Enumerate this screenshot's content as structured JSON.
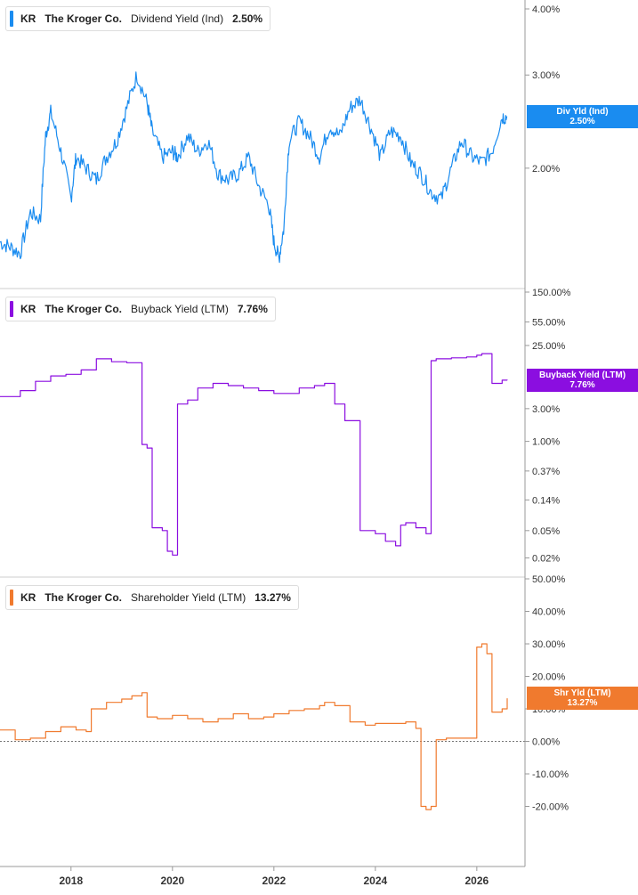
{
  "chart_data": [
    {
      "type": "line",
      "ticker": "KR",
      "company": "The Kroger Co.",
      "series_name": "Dividend Yield (Ind)",
      "current_value": "2.50%",
      "badge_label": "Div Yld (Ind)",
      "badge_value": "2.50%",
      "color": "#1a8cf0",
      "scale": "log",
      "ylim": [
        1.3,
        4.0
      ],
      "y_ticks": [
        4.0,
        3.0,
        2.0
      ],
      "y_tick_labels": [
        "4.00%",
        "3.00%",
        "2.00%"
      ],
      "x": [
        2016.6,
        2016.8,
        2017.0,
        2017.2,
        2017.4,
        2017.5,
        2017.6,
        2017.8,
        2018.0,
        2018.1,
        2018.3,
        2018.5,
        2018.7,
        2018.9,
        2019.1,
        2019.3,
        2019.5,
        2019.6,
        2019.8,
        2020.0,
        2020.1,
        2020.3,
        2020.5,
        2020.7,
        2020.9,
        2021.1,
        2021.3,
        2021.5,
        2021.7,
        2021.9,
        2022.0,
        2022.1,
        2022.2,
        2022.3,
        2022.5,
        2022.7,
        2022.9,
        2023.1,
        2023.3,
        2023.5,
        2023.7,
        2023.9,
        2024.1,
        2024.3,
        2024.5,
        2024.7,
        2024.9,
        2025.1,
        2025.3,
        2025.5,
        2025.7,
        2025.9,
        2026.1,
        2026.3,
        2026.5,
        2026.6
      ],
      "values": [
        1.45,
        1.42,
        1.38,
        1.65,
        1.6,
        2.3,
        2.55,
        2.15,
        1.75,
        2.1,
        2.0,
        1.9,
        2.1,
        2.25,
        2.6,
        3.0,
        2.65,
        2.35,
        2.1,
        2.15,
        2.1,
        2.3,
        2.15,
        2.25,
        1.95,
        1.9,
        1.95,
        2.1,
        1.85,
        1.7,
        1.45,
        1.35,
        1.55,
        2.25,
        2.45,
        2.3,
        2.1,
        2.4,
        2.3,
        2.6,
        2.7,
        2.4,
        2.1,
        2.35,
        2.3,
        2.05,
        1.95,
        1.8,
        1.75,
        2.0,
        2.25,
        2.1,
        2.05,
        2.15,
        2.5,
        2.5
      ]
    },
    {
      "type": "line",
      "ticker": "KR",
      "company": "The Kroger Co.",
      "series_name": "Buyback Yield (LTM)",
      "current_value": "7.76%",
      "badge_label": "Buyback Yield (LTM)",
      "badge_value": "7.76%",
      "color": "#8b0ee0",
      "scale": "log",
      "ylim": [
        0.018,
        150
      ],
      "y_ticks": [
        150,
        55,
        25,
        3,
        1,
        0.37,
        0.14,
        0.05,
        0.02
      ],
      "y_tick_labels": [
        "150.00%",
        "55.00%",
        "25.00%",
        "3.00%",
        "1.00%",
        "0.37%",
        "0.14%",
        "0.05%",
        "0.02%"
      ],
      "x": [
        2016.6,
        2017.0,
        2017.3,
        2017.6,
        2017.9,
        2018.2,
        2018.5,
        2018.8,
        2019.1,
        2019.3,
        2019.4,
        2019.5,
        2019.6,
        2019.8,
        2019.9,
        2020.0,
        2020.1,
        2020.3,
        2020.5,
        2020.8,
        2021.1,
        2021.4,
        2021.7,
        2022.0,
        2022.3,
        2022.5,
        2022.8,
        2023.0,
        2023.2,
        2023.4,
        2023.7,
        2024.0,
        2024.2,
        2024.4,
        2024.5,
        2024.6,
        2024.8,
        2025.0,
        2025.1,
        2025.2,
        2025.5,
        2025.8,
        2026.0,
        2026.1,
        2026.3,
        2026.5,
        2026.6
      ],
      "values": [
        4.5,
        5.5,
        7.5,
        9.0,
        9.5,
        11.0,
        16.0,
        14.5,
        14.0,
        14.0,
        0.9,
        0.8,
        0.055,
        0.05,
        0.025,
        0.022,
        3.5,
        4.0,
        6.0,
        7.0,
        6.5,
        6.0,
        5.5,
        5.0,
        5.0,
        6.0,
        6.5,
        7.0,
        3.5,
        2.0,
        0.05,
        0.045,
        0.035,
        0.03,
        0.06,
        0.065,
        0.055,
        0.045,
        15.0,
        16.0,
        16.5,
        17.0,
        18.0,
        19.0,
        7.0,
        7.8,
        7.76
      ]
    },
    {
      "type": "line",
      "ticker": "KR",
      "company": "The Kroger Co.",
      "series_name": "Shareholder Yield (LTM)",
      "current_value": "13.27%",
      "badge_label": "Shr Yld (LTM)",
      "badge_value": "13.27%",
      "color": "#f07a2e",
      "scale": "linear",
      "ylim": [
        -30,
        50
      ],
      "y_ticks": [
        50,
        40,
        30,
        20,
        10,
        0,
        -10,
        -20
      ],
      "y_tick_labels": [
        "50.00%",
        "40.00%",
        "30.00%",
        "20.00%",
        "10.00%",
        "0.00%",
        "-10.00%",
        "-20.00%"
      ],
      "zero_line": true,
      "x": [
        2016.6,
        2016.9,
        2017.2,
        2017.5,
        2017.8,
        2018.1,
        2018.3,
        2018.4,
        2018.7,
        2019.0,
        2019.2,
        2019.4,
        2019.5,
        2019.7,
        2020.0,
        2020.3,
        2020.6,
        2020.9,
        2021.2,
        2021.5,
        2021.8,
        2022.0,
        2022.3,
        2022.6,
        2022.9,
        2023.0,
        2023.2,
        2023.5,
        2023.8,
        2024.0,
        2024.3,
        2024.6,
        2024.8,
        2024.9,
        2025.0,
        2025.1,
        2025.2,
        2025.4,
        2025.7,
        2025.9,
        2026.0,
        2026.1,
        2026.2,
        2026.3,
        2026.5,
        2026.6
      ],
      "values": [
        3.5,
        0.5,
        1.0,
        3.0,
        4.5,
        3.5,
        3.0,
        10.0,
        12.0,
        13.0,
        14.0,
        15.0,
        7.5,
        7.0,
        8.0,
        7.0,
        6.0,
        7.0,
        8.5,
        7.0,
        7.5,
        8.5,
        9.5,
        10.0,
        11.0,
        12.0,
        11.0,
        6.0,
        5.0,
        5.5,
        5.5,
        6.0,
        4.0,
        -20.0,
        -21.0,
        -20.0,
        0.5,
        1.0,
        1.0,
        1.0,
        29.0,
        30.0,
        27.0,
        9.0,
        10.0,
        13.27
      ]
    }
  ],
  "x_axis": {
    "ticks": [
      2018,
      2020,
      2022,
      2024,
      2026
    ],
    "tick_labels": [
      "2018",
      "2020",
      "2022",
      "2024",
      "2026"
    ]
  }
}
